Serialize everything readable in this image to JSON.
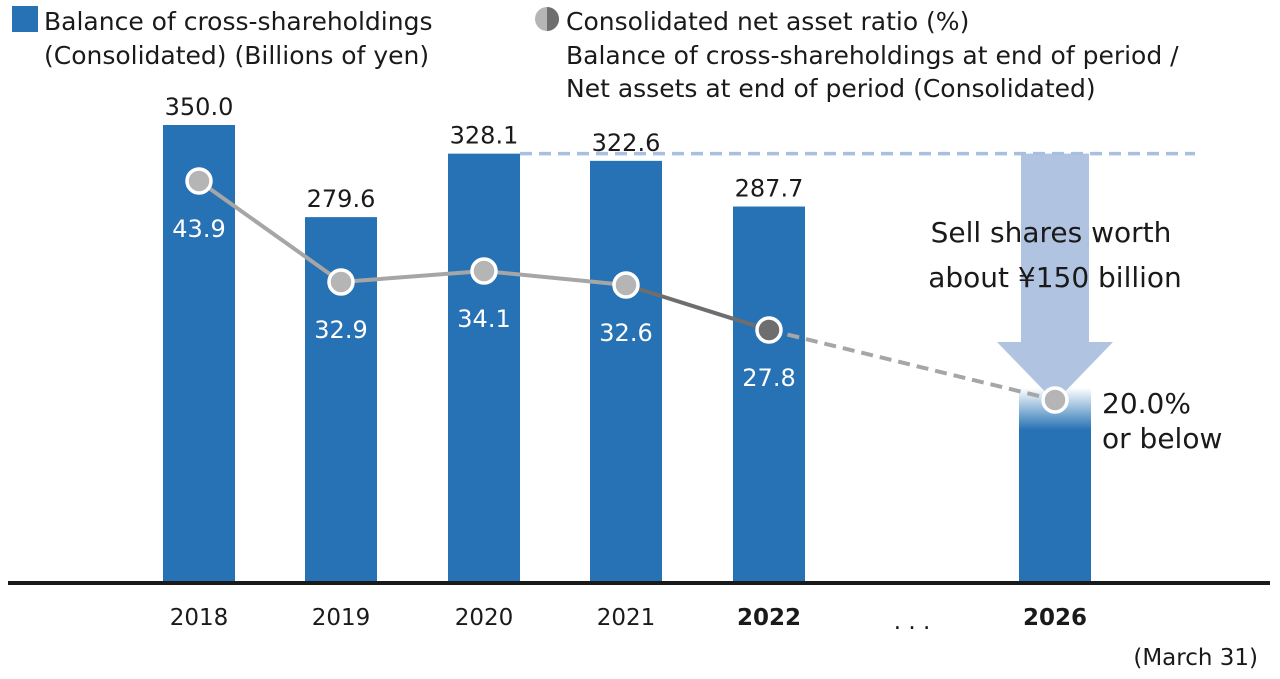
{
  "legend": {
    "bars_line1": "Balance of cross-shareholdings",
    "bars_line2": "(Consolidated) (Billions of yen)",
    "ratio_line1": "Consolidated net asset ratio (%)",
    "ratio_line2": "Balance of cross-shareholdings at end of period /",
    "ratio_line3": "Net assets at end of period (Consolidated)"
  },
  "callout": {
    "line1": "Sell shares worth",
    "line2": "about ¥150 billion"
  },
  "target": {
    "line1": "20.0%",
    "line2": "or below"
  },
  "ellipsis": ". . .",
  "note": "(March 31)",
  "colors": {
    "bar": "#2672b4",
    "ratio_marker": "#b5b5b5",
    "ratio_marker_latest": "#6e6e6e",
    "ratio_line": "#a6a6a6",
    "arrow": "#a9bfe0",
    "dashed_ref": "#a9bfe0",
    "axis": "#1a1a1a"
  },
  "chart_data": {
    "type": "bar",
    "categories": [
      "2018",
      "2019",
      "2020",
      "2021",
      "2022",
      "2026"
    ],
    "bold_categories": [
      "2022",
      "2026"
    ],
    "series": [
      {
        "name": "Balance of cross-shareholdings (Consolidated) (Billions of yen)",
        "values": [
          350.0,
          279.6,
          328.1,
          322.6,
          287.7,
          null
        ],
        "labels": [
          "350.0",
          "279.6",
          "328.1",
          "322.6",
          "287.7",
          ""
        ]
      },
      {
        "name": "Consolidated net asset ratio (%)",
        "values": [
          43.9,
          32.9,
          34.1,
          32.6,
          27.8,
          20.0
        ],
        "labels": [
          "43.9",
          "32.9",
          "34.1",
          "32.6",
          "27.8",
          ""
        ]
      }
    ],
    "projected_2026_balance": 178,
    "ylim": [
      0,
      370
    ],
    "ratio_ylim": [
      0,
      60
    ],
    "reference_value": 328.1
  }
}
